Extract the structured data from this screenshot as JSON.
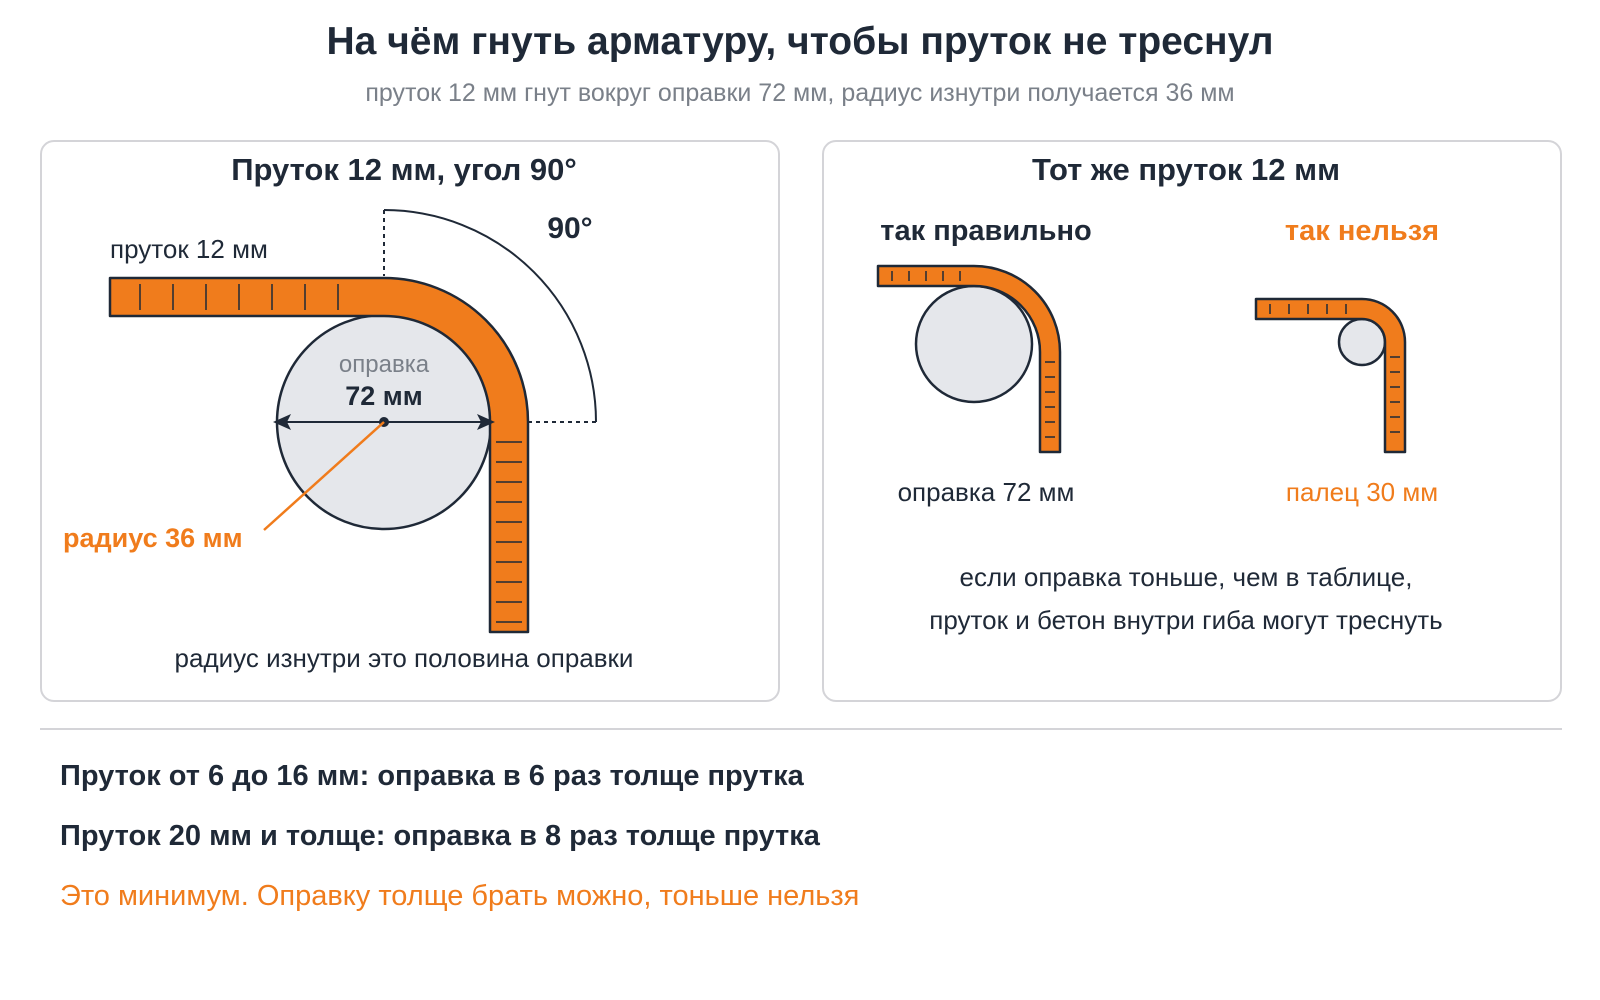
{
  "title": "На чём гнуть арматуру, чтобы пруток не треснул",
  "subtitle": "пруток 12 мм гнут вокруг оправки 72 мм, радиус изнутри получается 36 мм",
  "colors": {
    "bar": "#f07c1c",
    "outline": "#1f2937",
    "mandrel": "#e5e7eb",
    "accent": "#f07c1c"
  },
  "left_panel": {
    "title": "Пруток 12 мм, угол 90°",
    "bar_label": "пруток 12 мм",
    "angle_label": "90°",
    "mandrel_label": "оправка",
    "mandrel_size": "72 мм",
    "radius_label": "радиус 36 мм",
    "caption": "радиус изнутри это половина оправки"
  },
  "right_panel": {
    "title": "Тот же пруток 12 мм",
    "good_label": "так правильно",
    "bad_label": "так нельзя",
    "good_caption": "оправка 72 мм",
    "bad_caption": "палец 30 мм",
    "warning_line1": "если оправка тоньше, чем в таблице,",
    "warning_line2": "пруток и бетон внутри гиба могут треснуть"
  },
  "rules": [
    "Пруток от 6 до 16 мм: оправка в 6 раз толще прутка",
    "Пруток 20 мм и толще: оправка в 8 раз толще прутка"
  ],
  "note": "Это минимум. Оправку толще брать можно, тоньше нельзя"
}
